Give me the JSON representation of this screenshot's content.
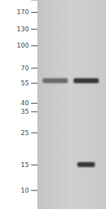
{
  "chart_data": {
    "type": "western_blot",
    "log": "y",
    "tick_labels": "y",
    "ylim": [
      7.4,
      206
    ],
    "yticks": [
      170,
      130,
      100,
      70,
      55,
      40,
      35,
      25,
      15,
      10
    ],
    "categories": [
      null,
      null
    ],
    "lanes": [
      {
        "bands": [
          57
        ]
      },
      {
        "bands": [
          57,
          15
        ]
      }
    ]
  }
}
